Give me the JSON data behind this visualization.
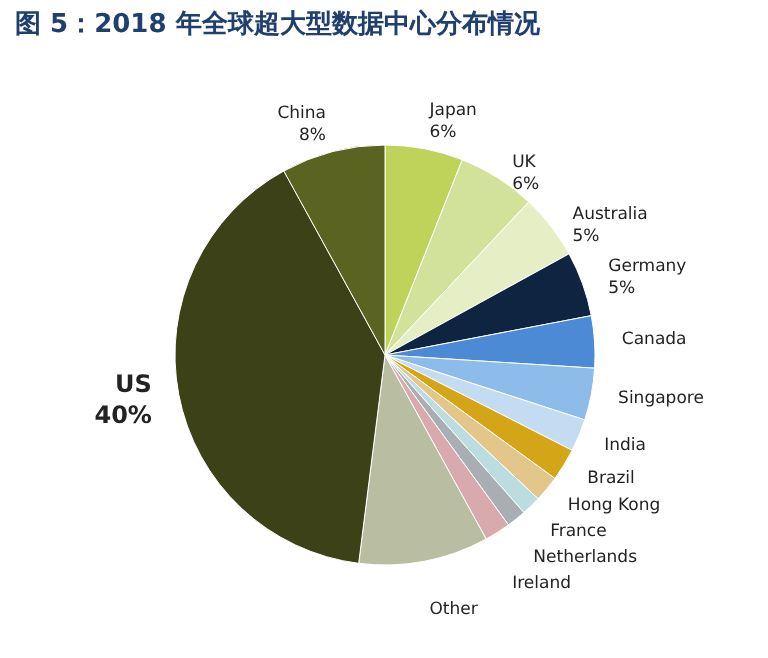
{
  "chart_data": {
    "type": "pie",
    "title": "图 5：2018 年全球超大型数据中心分布情况",
    "categories": [
      "Japan",
      "UK",
      "Australia",
      "Germany",
      "Canada",
      "Singapore",
      "India",
      "Brazil",
      "Hong Kong",
      "France",
      "Netherlands",
      "Ireland",
      "Other",
      "US",
      "China"
    ],
    "values": [
      6,
      6,
      5,
      5,
      4,
      4,
      2.5,
      2.5,
      2,
      1.5,
      1.5,
      2,
      10,
      40,
      8
    ],
    "value_labels": [
      "6%",
      "6%",
      "5%",
      "5%",
      null,
      null,
      null,
      null,
      null,
      null,
      null,
      null,
      null,
      "40%",
      "8%"
    ],
    "colors": [
      "#bfd35a",
      "#d3e29a",
      "#e6eec6",
      "#0e2440",
      "#4c8ad6",
      "#8dbbea",
      "#c4dcf2",
      "#d4a516",
      "#e3c689",
      "#bcdde0",
      "#a8aeb4",
      "#d8a9ad",
      "#b9bea2",
      "#3c4117",
      "#5a6420"
    ]
  }
}
